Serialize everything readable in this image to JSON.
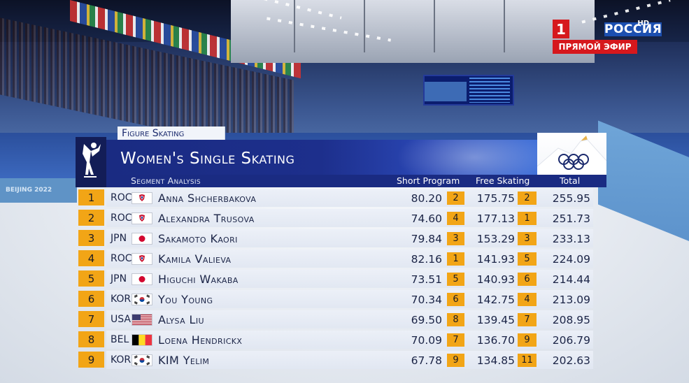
{
  "channel": {
    "name": "РОССИЯ",
    "number": "1",
    "hd": "HD",
    "live": "ПРЯМОЙ ЭФИР"
  },
  "venue_board_text": "BEIJING 2022",
  "graphic": {
    "category": "Figure Skating",
    "title": "Women's Single Skating",
    "subtitle": "Segment Analysis",
    "columns": {
      "short_program": "Short Program",
      "free_skating": "Free Skating",
      "total": "Total"
    }
  },
  "colors": {
    "banner": "#1a2b82",
    "rank_badge": "#f2a516",
    "row_background": "#e6ebf4"
  },
  "results": [
    {
      "rank": "1",
      "noc": "ROC",
      "flag": "roc-flag",
      "name": "Anna Shcherbakova",
      "sp": "80.20",
      "sp_rank": "2",
      "fs": "175.75",
      "fs_rank": "2",
      "total": "255.95"
    },
    {
      "rank": "2",
      "noc": "ROC",
      "flag": "roc-flag",
      "name": "Alexandra Trusova",
      "sp": "74.60",
      "sp_rank": "4",
      "fs": "177.13",
      "fs_rank": "1",
      "total": "251.73"
    },
    {
      "rank": "3",
      "noc": "JPN",
      "flag": "japan-flag",
      "name": "Sakamoto Kaori",
      "sp": "79.84",
      "sp_rank": "3",
      "fs": "153.29",
      "fs_rank": "3",
      "total": "233.13"
    },
    {
      "rank": "4",
      "noc": "ROC",
      "flag": "roc-flag",
      "name": "Kamila Valieva",
      "sp": "82.16",
      "sp_rank": "1",
      "fs": "141.93",
      "fs_rank": "5",
      "total": "224.09"
    },
    {
      "rank": "5",
      "noc": "JPN",
      "flag": "japan-flag",
      "name": "Higuchi Wakaba",
      "sp": "73.51",
      "sp_rank": "5",
      "fs": "140.93",
      "fs_rank": "6",
      "total": "214.44"
    },
    {
      "rank": "6",
      "noc": "KOR",
      "flag": "korea-flag",
      "name": "You Young",
      "sp": "70.34",
      "sp_rank": "6",
      "fs": "142.75",
      "fs_rank": "4",
      "total": "213.09"
    },
    {
      "rank": "7",
      "noc": "USA",
      "flag": "usa-flag",
      "name": "Alysa Liu",
      "sp": "69.50",
      "sp_rank": "8",
      "fs": "139.45",
      "fs_rank": "7",
      "total": "208.95"
    },
    {
      "rank": "8",
      "noc": "BEL",
      "flag": "belgium-flag",
      "name": "Loena Hendrickx",
      "sp": "70.09",
      "sp_rank": "7",
      "fs": "136.70",
      "fs_rank": "9",
      "total": "206.79"
    },
    {
      "rank": "9",
      "noc": "KOR",
      "flag": "korea-flag",
      "name": "KIM Yelim",
      "sp": "67.78",
      "sp_rank": "9",
      "fs": "134.85",
      "fs_rank": "11",
      "total": "202.63"
    }
  ]
}
